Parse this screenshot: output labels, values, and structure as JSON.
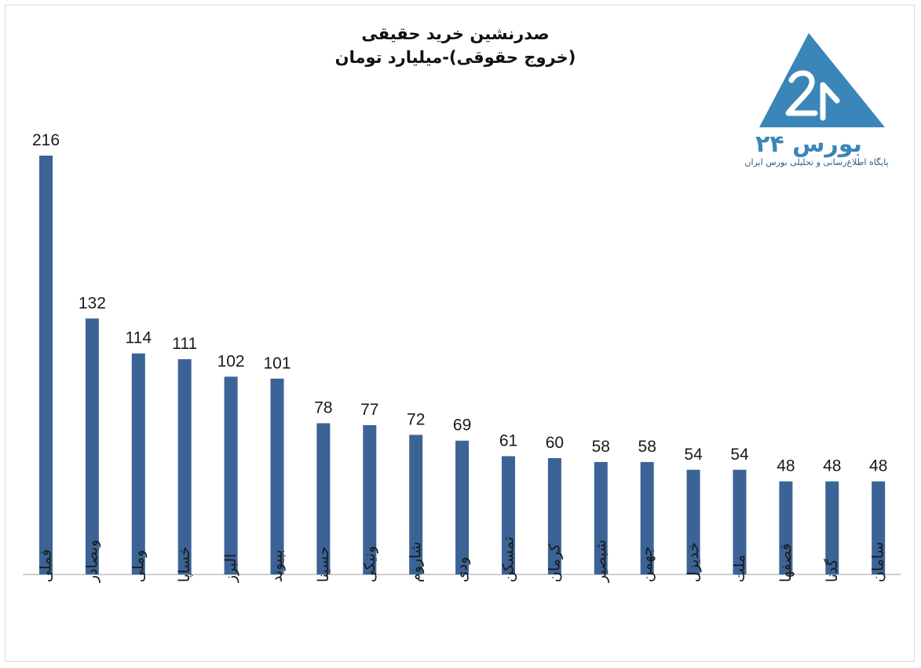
{
  "chart_data": {
    "type": "bar",
    "title": "صدرنشین خرید حقیقی",
    "subtitle": "(خروج حقوقی)-میلیارد تومان",
    "categories": [
      "فملی",
      "وبصادر",
      "وملی",
      "خساپا",
      "البرز",
      "بپیوند",
      "حسینا",
      "ونیکی",
      "شاروم",
      "ودی",
      "تمسکن",
      "کرمان",
      "شبصیر",
      "جهمن",
      "خدیزل",
      "ملت",
      "قصفها",
      "گدنا",
      "سامان"
    ],
    "values": [
      216,
      132,
      114,
      111,
      102,
      101,
      78,
      77,
      72,
      69,
      61,
      60,
      58,
      58,
      54,
      54,
      48,
      48,
      48
    ],
    "bar_color": "#3b6396",
    "ylim": [
      0,
      216
    ],
    "grid": false,
    "legend": "none"
  },
  "logo": {
    "wordmark": "بورس ۲۴",
    "tagline": "پایگاه اطلاع‌رسانی و تحلیلی بورس ایران",
    "color": "#3a86b8"
  }
}
